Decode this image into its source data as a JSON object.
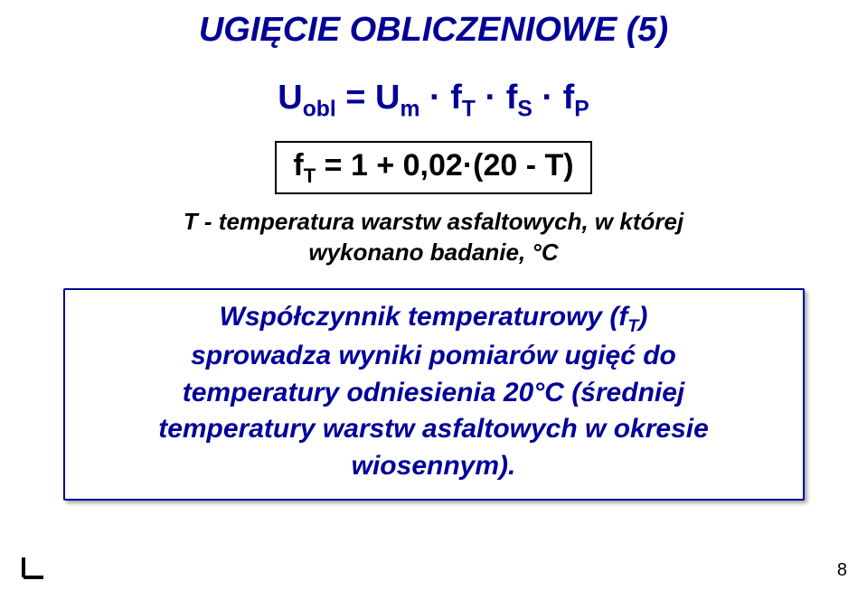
{
  "title": {
    "text": "UGIĘCIE OBLICZENIOWE (5)",
    "color": "#000099",
    "fontsize": 38,
    "fontweight": "900"
  },
  "formula_main": {
    "html": "U<sub>obl</sub> = U<sub>m</sub> · f<sub>T</sub> · f<sub>S</sub> · f<sub>P</sub>",
    "color": "#000099",
    "fontsize": 38,
    "fontweight": "bold"
  },
  "formula_box": {
    "html": "f<sub>T</sub> = 1 + 0,02·(20 - T)",
    "color": "#000000",
    "fontsize": 34,
    "fontweight": "bold",
    "border_color": "#000000",
    "border_width": 2
  },
  "caption": {
    "line1": "T - temperatura warstw asfaltowych, w której",
    "line2": "wykonano badanie, °C",
    "color": "#000000",
    "fontsize": 26,
    "fontweight": "bold"
  },
  "info_box": {
    "line1_html": "Współczynnik temperaturowy (f<sub>T</sub>)",
    "line2": "sprowadza wyniki pomiarów ugięć do",
    "line3": "temperatury odniesienia 20°C (średniej",
    "line4": "temperatury warstw asfaltowych w okresie",
    "line5": "wiosennym).",
    "color": "#000099",
    "fontsize": 30,
    "fontweight": "bold",
    "border_color": "#000099",
    "border_width": 2,
    "shadow": "3px 3px 4px rgba(0,0,0,0.35)",
    "background": "#ffffff"
  },
  "page_number": {
    "text": "8",
    "color": "#000000",
    "fontsize": 20
  },
  "corner_mark": {
    "stroke": "#000000",
    "stroke_width": 4
  }
}
